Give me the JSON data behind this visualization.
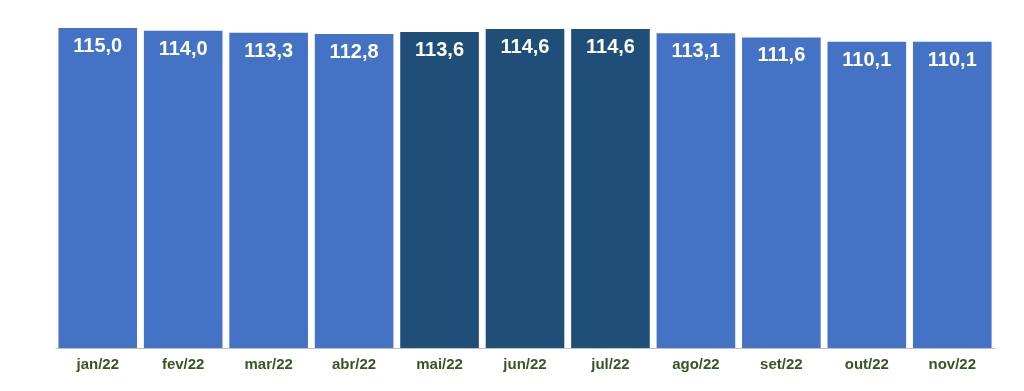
{
  "chart_data": {
    "type": "bar",
    "categories": [
      "jan/22",
      "fev/22",
      "mar/22",
      "abr/22",
      "mai/22",
      "jun/22",
      "jul/22",
      "ago/22",
      "set/22",
      "out/22",
      "nov/22"
    ],
    "values": [
      115.0,
      114.0,
      113.3,
      112.8,
      113.6,
      114.6,
      114.6,
      113.1,
      111.6,
      110.1,
      110.1
    ],
    "colors": [
      "#4472c4",
      "#4472c4",
      "#4472c4",
      "#4472c4",
      "#1f4e79",
      "#1f4e79",
      "#1f4e79",
      "#4472c4",
      "#4472c4",
      "#4472c4",
      "#4472c4"
    ],
    "value_labels": [
      "115,0",
      "114,0",
      "113,3",
      "112,8",
      "113,6",
      "114,6",
      "114,6",
      "113,1",
      "111,6",
      "110,1",
      "110,1"
    ],
    "tick_labels": "x"
  }
}
